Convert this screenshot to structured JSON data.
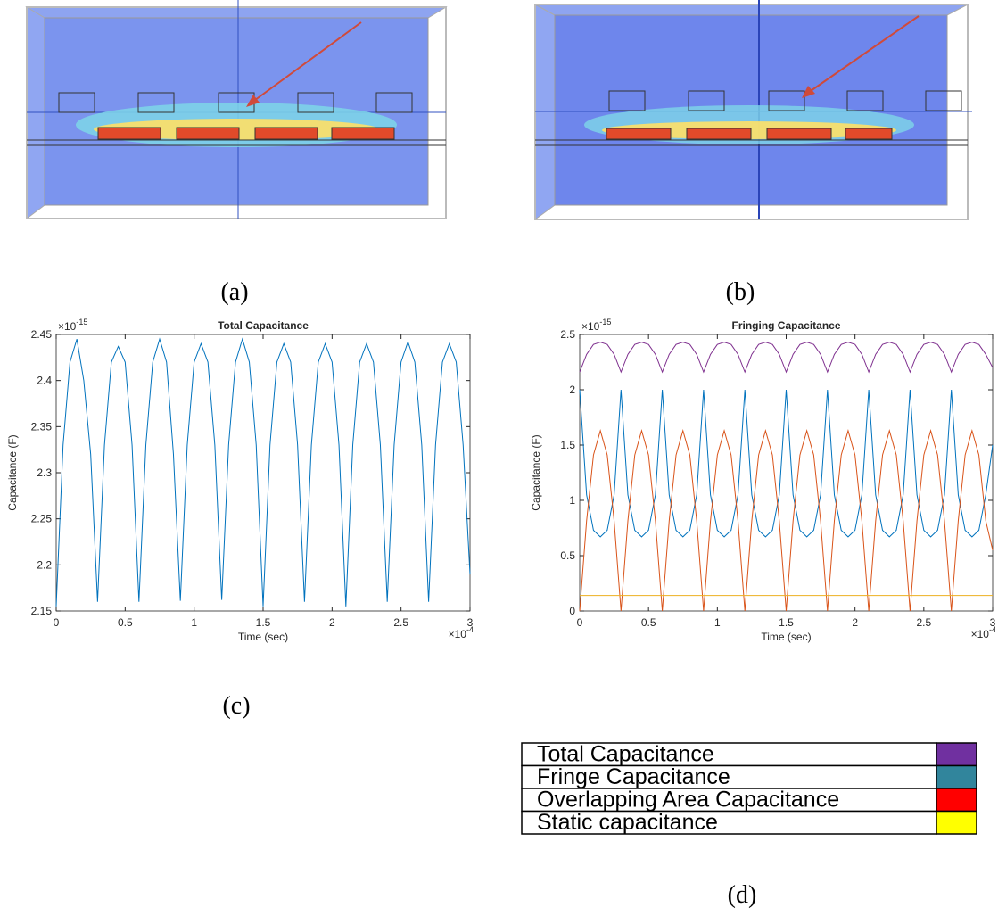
{
  "panel_labels": [
    "(a)",
    "(b)",
    "(c)",
    "(d)"
  ],
  "chart_data": [
    {
      "type": "line",
      "title": "Total Capacitance",
      "xlabel": "Time (sec)",
      "ylabel": "Capacitance (F)",
      "y_multiplier": {
        "base": "×10",
        "exponent": "-15"
      },
      "x_multiplier": {
        "base": "×10",
        "exponent": "-4"
      },
      "xlim": [
        0,
        3
      ],
      "xticks": [
        0,
        0.5,
        1,
        1.5,
        2,
        2.5,
        3
      ],
      "ylim": [
        2.15,
        2.45
      ],
      "yticks": [
        2.15,
        2.2,
        2.25,
        2.3,
        2.35,
        2.4,
        2.45
      ],
      "x": [
        0,
        0.05,
        0.1,
        0.15,
        0.2,
        0.25,
        0.3,
        0.35,
        0.4,
        0.45,
        0.5,
        0.55,
        0.6,
        0.65,
        0.7,
        0.75,
        0.8,
        0.85,
        0.9,
        0.95,
        1,
        1.05,
        1.1,
        1.15,
        1.2,
        1.25,
        1.3,
        1.35,
        1.4,
        1.45,
        1.5,
        1.55,
        1.6,
        1.65,
        1.7,
        1.75,
        1.8,
        1.85,
        1.9,
        1.95,
        2,
        2.05,
        2.1,
        2.15,
        2.2,
        2.25,
        2.3,
        2.35,
        2.4,
        2.45,
        2.5,
        2.55,
        2.6,
        2.65,
        2.7,
        2.75,
        2.8,
        2.85,
        2.9,
        2.95,
        3
      ],
      "series": [
        {
          "color": "#0072bd",
          "values": [
            2.155,
            2.33,
            2.42,
            2.445,
            2.4,
            2.32,
            2.16,
            2.33,
            2.42,
            2.437,
            2.42,
            2.33,
            2.16,
            2.33,
            2.42,
            2.445,
            2.42,
            2.32,
            2.161,
            2.33,
            2.42,
            2.44,
            2.42,
            2.33,
            2.162,
            2.33,
            2.42,
            2.445,
            2.42,
            2.33,
            2.155,
            2.33,
            2.42,
            2.44,
            2.42,
            2.33,
            2.16,
            2.33,
            2.42,
            2.44,
            2.42,
            2.33,
            2.155,
            2.33,
            2.42,
            2.44,
            2.42,
            2.33,
            2.16,
            2.33,
            2.42,
            2.442,
            2.42,
            2.33,
            2.16,
            2.33,
            2.42,
            2.44,
            2.42,
            2.33,
            2.19
          ]
        }
      ]
    },
    {
      "type": "line",
      "title": "Fringing Capacitance",
      "xlabel": "Time (sec)",
      "ylabel": "Capacitance (F)",
      "y_multiplier": {
        "base": "×10",
        "exponent": "-15"
      },
      "x_multiplier": {
        "base": "×10",
        "exponent": "-4"
      },
      "xlim": [
        0,
        3
      ],
      "xticks": [
        0,
        0.5,
        1,
        1.5,
        2,
        2.5,
        3
      ],
      "ylim": [
        0,
        2.5
      ],
      "yticks": [
        0,
        0.5,
        1,
        1.5,
        2,
        2.5
      ],
      "x": [
        0,
        0.05,
        0.1,
        0.15,
        0.2,
        0.25,
        0.3,
        0.35,
        0.4,
        0.45,
        0.5,
        0.55,
        0.6,
        0.65,
        0.7,
        0.75,
        0.8,
        0.85,
        0.9,
        0.95,
        1,
        1.05,
        1.1,
        1.15,
        1.2,
        1.25,
        1.3,
        1.35,
        1.4,
        1.45,
        1.5,
        1.55,
        1.6,
        1.65,
        1.7,
        1.75,
        1.8,
        1.85,
        1.9,
        1.95,
        2,
        2.05,
        2.1,
        2.15,
        2.2,
        2.25,
        2.3,
        2.35,
        2.4,
        2.45,
        2.5,
        2.55,
        2.6,
        2.65,
        2.7,
        2.75,
        2.8,
        2.85,
        2.9,
        2.95,
        3
      ],
      "series": [
        {
          "name": "Total Capacitance",
          "color": "#7e2f8e",
          "swatch": "#7030a0",
          "values": [
            2.16,
            2.32,
            2.41,
            2.43,
            2.41,
            2.32,
            2.16,
            2.32,
            2.41,
            2.43,
            2.41,
            2.32,
            2.16,
            2.32,
            2.41,
            2.43,
            2.41,
            2.32,
            2.16,
            2.32,
            2.41,
            2.43,
            2.41,
            2.32,
            2.16,
            2.32,
            2.41,
            2.43,
            2.41,
            2.32,
            2.16,
            2.32,
            2.41,
            2.43,
            2.41,
            2.32,
            2.16,
            2.32,
            2.41,
            2.43,
            2.41,
            2.32,
            2.16,
            2.32,
            2.41,
            2.43,
            2.41,
            2.32,
            2.16,
            2.32,
            2.41,
            2.43,
            2.41,
            2.32,
            2.16,
            2.32,
            2.41,
            2.43,
            2.41,
            2.32,
            2.2
          ]
        },
        {
          "name": "Fringe Capacitance",
          "color": "#0072bd",
          "swatch": "#31859c",
          "values": [
            2.0,
            1.05,
            0.73,
            0.67,
            0.73,
            1.05,
            2.0,
            1.05,
            0.73,
            0.67,
            0.73,
            1.05,
            2.0,
            1.05,
            0.73,
            0.67,
            0.73,
            1.05,
            2.0,
            1.05,
            0.73,
            0.67,
            0.73,
            1.05,
            2.0,
            1.05,
            0.73,
            0.67,
            0.73,
            1.05,
            2.0,
            1.05,
            0.73,
            0.67,
            0.73,
            1.05,
            2.0,
            1.05,
            0.73,
            0.67,
            0.73,
            1.05,
            2.0,
            1.05,
            0.73,
            0.67,
            0.73,
            1.05,
            2.0,
            1.05,
            0.73,
            0.67,
            0.73,
            1.05,
            2.0,
            1.05,
            0.73,
            0.67,
            0.73,
            1.05,
            1.5
          ]
        },
        {
          "name": "Overlapping Area Capacitance",
          "color": "#d95319",
          "swatch": "#ff0000",
          "values": [
            0,
            0.815,
            1.41,
            1.63,
            1.41,
            0.815,
            0,
            0.815,
            1.41,
            1.63,
            1.41,
            0.815,
            0,
            0.815,
            1.41,
            1.63,
            1.41,
            0.815,
            0,
            0.815,
            1.41,
            1.63,
            1.41,
            0.815,
            0,
            0.815,
            1.41,
            1.63,
            1.41,
            0.815,
            0,
            0.815,
            1.41,
            1.63,
            1.41,
            0.815,
            0,
            0.815,
            1.41,
            1.63,
            1.41,
            0.815,
            0,
            0.815,
            1.41,
            1.63,
            1.41,
            0.815,
            0,
            0.815,
            1.41,
            1.63,
            1.41,
            0.815,
            0,
            0.815,
            1.41,
            1.63,
            1.41,
            0.815,
            0.55
          ]
        },
        {
          "name": "Static capacitance",
          "color": "#edb120",
          "swatch": "#ffff00",
          "values": [
            0.14,
            0.14,
            0.14,
            0.14,
            0.14,
            0.14,
            0.14,
            0.14,
            0.14,
            0.14,
            0.14,
            0.14,
            0.14,
            0.14,
            0.14,
            0.14,
            0.14,
            0.14,
            0.14,
            0.14,
            0.14,
            0.14,
            0.14,
            0.14,
            0.14,
            0.14,
            0.14,
            0.14,
            0.14,
            0.14,
            0.14,
            0.14,
            0.14,
            0.14,
            0.14,
            0.14,
            0.14,
            0.14,
            0.14,
            0.14,
            0.14,
            0.14,
            0.14,
            0.14,
            0.14,
            0.14,
            0.14,
            0.14,
            0.14,
            0.14,
            0.14,
            0.14,
            0.14,
            0.14,
            0.14,
            0.14,
            0.14,
            0.14,
            0.14,
            0.14,
            0.14
          ]
        }
      ]
    }
  ]
}
